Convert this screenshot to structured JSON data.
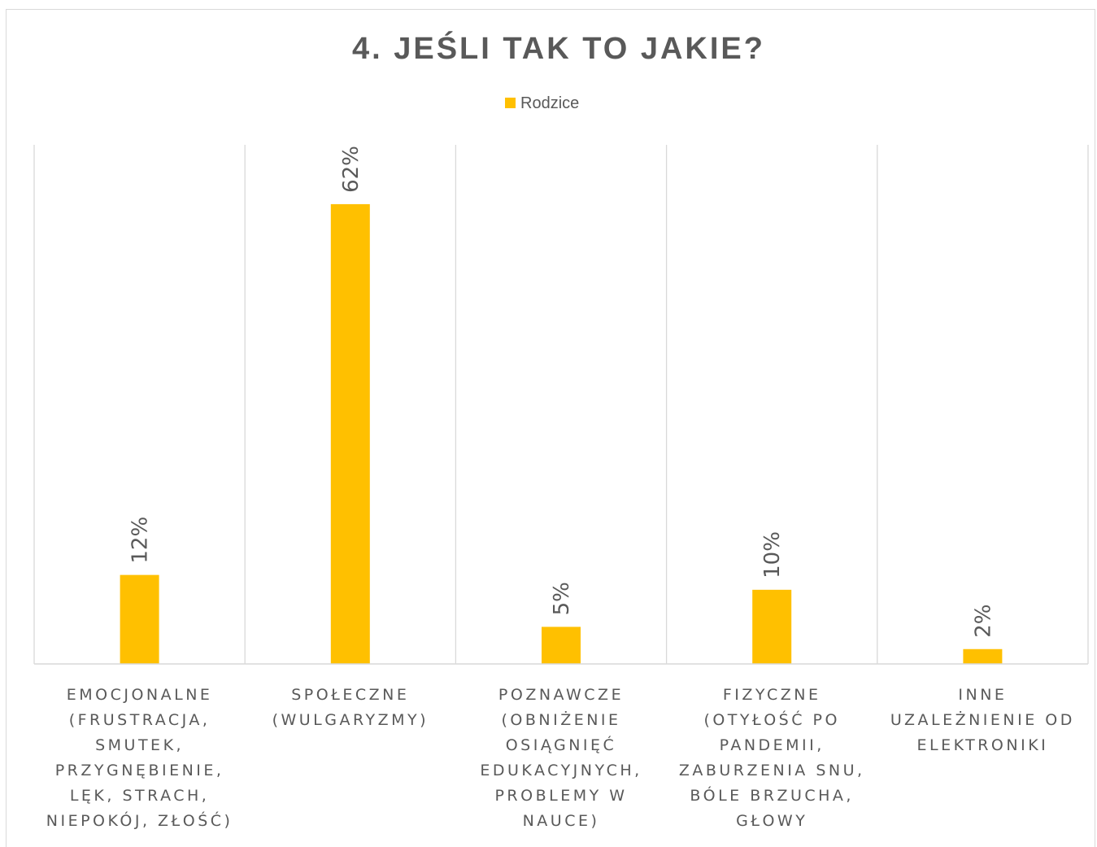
{
  "chart_data": {
    "type": "bar",
    "title": "4. JEŚLI TAK TO JAKIE?",
    "legend": {
      "position": "top",
      "entries": [
        "Rodzice"
      ]
    },
    "categories": [
      [
        "EMOCJONALNE",
        "(FRUSTRACJA,",
        "SMUTEK,",
        "PRZYGNĘBIENIE,",
        "LĘK, STRACH,",
        "NIEPOKÓJ, ZŁOŚĆ)"
      ],
      [
        "SPOŁECZNE",
        "(WULGARYZMY)"
      ],
      [
        "POZNAWCZE",
        "(OBNIŻENIE",
        "OSIĄGNIĘĆ",
        "EDUKACYJNYCH,",
        "PROBLEMY W",
        "NAUCE)"
      ],
      [
        "FIZYCZNE",
        "(OTYŁOŚĆ PO",
        "PANDEMII,",
        "ZABURZENIA SNU,",
        "BÓLE BRZUCHA,",
        "GŁOWY"
      ],
      [
        "INNE",
        "UZALEŻNIENIE OD",
        "ELEKTRONIKI"
      ]
    ],
    "series": [
      {
        "name": "Rodzice",
        "values": [
          12,
          62,
          5,
          10,
          2
        ],
        "color": "#FFC000"
      }
    ],
    "data_labels": [
      "12%",
      "62%",
      "5%",
      "10%",
      "2%"
    ],
    "ylim": [
      0,
      70
    ],
    "value_axis_visible": false,
    "vertical_category_gridlines": true,
    "data_label_rotation": "vertical"
  }
}
